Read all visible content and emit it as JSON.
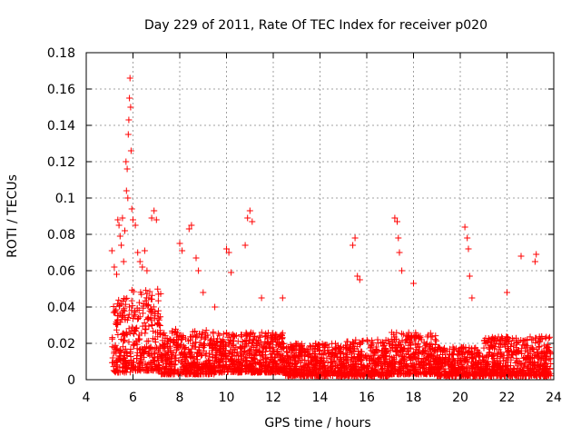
{
  "chart_data": {
    "type": "scatter",
    "title": "Day 229 of 2011, Rate Of TEC Index for receiver p020",
    "xlabel": "GPS time / hours",
    "ylabel": "ROTI / TECUs",
    "xlim": [
      4,
      24
    ],
    "ylim": [
      0,
      0.18
    ],
    "xticks": [
      4,
      6,
      8,
      10,
      12,
      14,
      16,
      18,
      20,
      22,
      24
    ],
    "yticks": [
      0,
      0.02,
      0.04,
      0.06,
      0.08,
      0.1,
      0.12,
      0.14,
      0.16,
      0.18
    ],
    "xtick_labels": [
      "4",
      "6",
      "8",
      "10",
      "12",
      "14",
      "16",
      "18",
      "20",
      "22",
      "24"
    ],
    "ytick_labels": [
      "0",
      "0.02",
      "0.04",
      "0.06",
      "0.08",
      "0.1",
      "0.12",
      "0.14",
      "0.16",
      "0.18"
    ],
    "grid": true,
    "marker": "plus",
    "series": [
      {
        "color": "#ff0000",
        "points": [
          [
            5.1,
            0.071
          ],
          [
            5.2,
            0.062
          ],
          [
            5.3,
            0.058
          ],
          [
            5.35,
            0.088
          ],
          [
            5.4,
            0.085
          ],
          [
            5.45,
            0.079
          ],
          [
            5.5,
            0.074
          ],
          [
            5.55,
            0.089
          ],
          [
            5.6,
            0.065
          ],
          [
            5.65,
            0.082
          ],
          [
            5.7,
            0.12
          ],
          [
            5.72,
            0.104
          ],
          [
            5.75,
            0.116
          ],
          [
            5.78,
            0.1
          ],
          [
            5.8,
            0.135
          ],
          [
            5.82,
            0.143
          ],
          [
            5.85,
            0.155
          ],
          [
            5.87,
            0.166
          ],
          [
            5.9,
            0.15
          ],
          [
            5.92,
            0.126
          ],
          [
            5.95,
            0.094
          ],
          [
            6.0,
            0.088
          ],
          [
            6.1,
            0.085
          ],
          [
            6.2,
            0.07
          ],
          [
            6.3,
            0.065
          ],
          [
            6.4,
            0.062
          ],
          [
            6.5,
            0.071
          ],
          [
            6.6,
            0.06
          ],
          [
            6.8,
            0.089
          ],
          [
            6.9,
            0.093
          ],
          [
            7.0,
            0.088
          ],
          [
            8.0,
            0.075
          ],
          [
            8.1,
            0.071
          ],
          [
            8.4,
            0.083
          ],
          [
            8.5,
            0.085
          ],
          [
            8.7,
            0.067
          ],
          [
            8.8,
            0.06
          ],
          [
            9.0,
            0.048
          ],
          [
            9.5,
            0.04
          ],
          [
            10.0,
            0.072
          ],
          [
            10.1,
            0.07
          ],
          [
            10.2,
            0.059
          ],
          [
            10.8,
            0.074
          ],
          [
            10.9,
            0.089
          ],
          [
            11.0,
            0.093
          ],
          [
            11.1,
            0.087
          ],
          [
            11.5,
            0.045
          ],
          [
            12.4,
            0.045
          ],
          [
            15.4,
            0.074
          ],
          [
            15.5,
            0.078
          ],
          [
            15.6,
            0.057
          ],
          [
            15.7,
            0.055
          ],
          [
            17.2,
            0.089
          ],
          [
            17.3,
            0.087
          ],
          [
            17.35,
            0.078
          ],
          [
            17.4,
            0.07
          ],
          [
            17.5,
            0.06
          ],
          [
            18.0,
            0.053
          ],
          [
            20.2,
            0.084
          ],
          [
            20.3,
            0.078
          ],
          [
            20.35,
            0.072
          ],
          [
            20.4,
            0.057
          ],
          [
            20.5,
            0.045
          ],
          [
            22.0,
            0.048
          ],
          [
            22.6,
            0.068
          ],
          [
            23.2,
            0.065
          ],
          [
            23.25,
            0.069
          ]
        ]
      }
    ],
    "noise_profile": [
      {
        "from": 5.1,
        "to": 5.9,
        "low": 0.004,
        "high": 0.045
      },
      {
        "from": 5.9,
        "to": 7.2,
        "low": 0.005,
        "high": 0.05
      },
      {
        "from": 7.2,
        "to": 9.5,
        "low": 0.003,
        "high": 0.028
      },
      {
        "from": 9.5,
        "to": 12.5,
        "low": 0.004,
        "high": 0.026
      },
      {
        "from": 12.5,
        "to": 15.0,
        "low": 0.002,
        "high": 0.02
      },
      {
        "from": 15.0,
        "to": 17.0,
        "low": 0.002,
        "high": 0.022
      },
      {
        "from": 17.0,
        "to": 19.0,
        "low": 0.003,
        "high": 0.026
      },
      {
        "from": 19.0,
        "to": 21.0,
        "low": 0.002,
        "high": 0.018
      },
      {
        "from": 21.0,
        "to": 23.9,
        "low": 0.002,
        "high": 0.024
      }
    ]
  }
}
